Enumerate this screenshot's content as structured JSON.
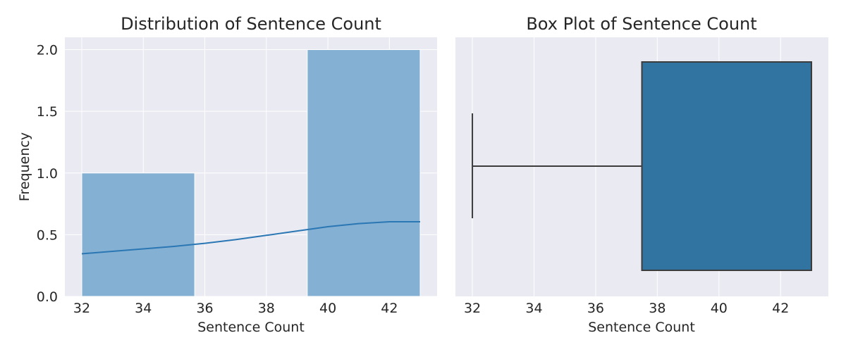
{
  "chart_data": [
    {
      "type": "bar",
      "subtype": "histogram-with-kde",
      "title": "Distribution of Sentence Count",
      "xlabel": "Sentence Count",
      "ylabel": "Frequency",
      "xlim": [
        31.45,
        43.55
      ],
      "ylim": [
        0,
        2.1
      ],
      "grid": true,
      "xticks": [
        32,
        34,
        36,
        38,
        40,
        42
      ],
      "xtick_labels": [
        "32",
        "34",
        "36",
        "38",
        "40",
        "42"
      ],
      "yticks": [
        0,
        0.5,
        1,
        1.5,
        2
      ],
      "ytick_labels": [
        "0.0",
        "0.5",
        "1.0",
        "1.5",
        "2.0"
      ],
      "bins": [
        {
          "x0": 32.0,
          "x1": 35.67,
          "count": 1
        },
        {
          "x0": 35.67,
          "x1": 39.33,
          "count": 0
        },
        {
          "x0": 39.33,
          "x1": 43.0,
          "count": 2
        }
      ],
      "kde": {
        "x": [
          32,
          33,
          34,
          35,
          36,
          37,
          38,
          39,
          40,
          41,
          42,
          43
        ],
        "y": [
          0.345,
          0.365,
          0.385,
          0.405,
          0.43,
          0.46,
          0.495,
          0.53,
          0.565,
          0.59,
          0.605,
          0.605
        ]
      },
      "colors": {
        "bar": "#84b0d3",
        "kde": "#2a77b4",
        "background": "#eaeaf2"
      }
    },
    {
      "type": "box",
      "title": "Box Plot of Sentence Count",
      "xlabel": "Sentence Count",
      "xlim": [
        31.45,
        43.55
      ],
      "grid": true,
      "xticks": [
        32,
        34,
        36,
        38,
        40,
        42
      ],
      "xtick_labels": [
        "32",
        "34",
        "36",
        "38",
        "40",
        "42"
      ],
      "stats": {
        "min": 32,
        "q1": 37.5,
        "median": 43,
        "q3": 43,
        "max": 43
      },
      "colors": {
        "box": "#3274a1",
        "line": "#3c3c3c",
        "background": "#eaeaf2"
      }
    }
  ]
}
